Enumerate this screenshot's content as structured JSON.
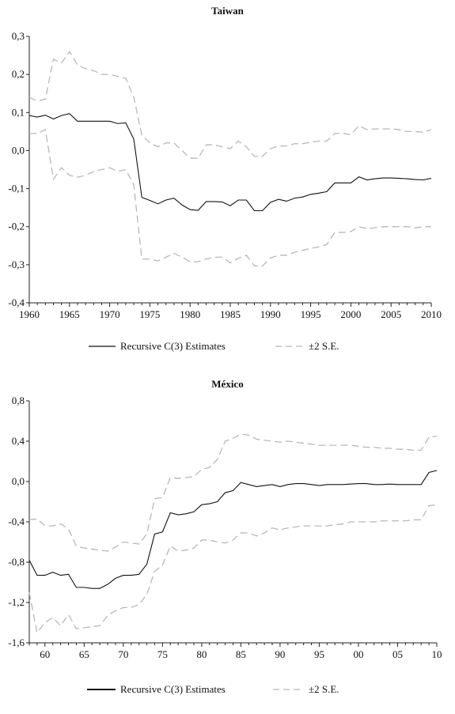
{
  "chart_data": [
    {
      "type": "line",
      "title": "Taiwan",
      "ylim": [
        -0.4,
        0.3
      ],
      "xlim": [
        1960,
        2010
      ],
      "yticks": [
        "0,3",
        "0,2",
        "0,1",
        "0,0",
        "-0,1",
        "-0,2",
        "-0,3",
        "-0,4"
      ],
      "ytick_values": [
        0.3,
        0.2,
        0.1,
        0.0,
        -0.1,
        -0.2,
        -0.3,
        -0.4
      ],
      "xticks": [
        "1960",
        "1965",
        "1970",
        "1975",
        "1980",
        "1985",
        "1990",
        "1995",
        "2000",
        "2005",
        "2010"
      ],
      "xtick_values": [
        1960,
        1965,
        1970,
        1975,
        1980,
        1985,
        1990,
        1995,
        2000,
        2005,
        2010
      ],
      "x": [
        1960,
        1961,
        1962,
        1963,
        1964,
        1965,
        1966,
        1967,
        1968,
        1969,
        1970,
        1971,
        1972,
        1973,
        1974,
        1975,
        1976,
        1977,
        1978,
        1979,
        1980,
        1981,
        1982,
        1983,
        1984,
        1985,
        1986,
        1987,
        1988,
        1989,
        1990,
        1991,
        1992,
        1993,
        1994,
        1995,
        1996,
        1997,
        1998,
        1999,
        2000,
        2001,
        2002,
        2003,
        2004,
        2005,
        2006,
        2007,
        2008,
        2009,
        2010
      ],
      "series": [
        {
          "name": "Recursive C(3) Estimates",
          "style": "solid",
          "values": [
            0.092,
            0.088,
            0.093,
            0.083,
            0.092,
            0.097,
            0.077,
            0.077,
            0.077,
            0.077,
            0.077,
            0.071,
            0.073,
            0.03,
            -0.123,
            -0.131,
            -0.14,
            -0.13,
            -0.125,
            -0.143,
            -0.155,
            -0.157,
            -0.134,
            -0.134,
            -0.135,
            -0.145,
            -0.13,
            -0.13,
            -0.158,
            -0.158,
            -0.136,
            -0.128,
            -0.133,
            -0.125,
            -0.122,
            -0.115,
            -0.112,
            -0.108,
            -0.085,
            -0.085,
            -0.085,
            -0.069,
            -0.077,
            -0.074,
            -0.072,
            -0.072,
            -0.073,
            -0.074,
            -0.076,
            -0.077,
            -0.073
          ]
        },
        {
          "name": "±2 S.E.",
          "style": "dashed",
          "values": [
            0.14,
            0.13,
            0.135,
            0.24,
            0.23,
            0.26,
            0.225,
            0.215,
            0.21,
            0.2,
            0.2,
            0.195,
            0.19,
            0.14,
            0.04,
            0.02,
            0.01,
            0.02,
            0.02,
            0.0,
            -0.02,
            -0.02,
            0.015,
            0.015,
            0.01,
            0.005,
            0.025,
            0.01,
            -0.015,
            -0.015,
            0.005,
            0.012,
            0.012,
            0.018,
            0.018,
            0.022,
            0.025,
            0.025,
            0.045,
            0.045,
            0.042,
            0.065,
            0.055,
            0.057,
            0.057,
            0.057,
            0.055,
            0.05,
            0.05,
            0.048,
            0.055
          ]
        },
        {
          "name": "±2 S.E.",
          "style": "dashed",
          "values": [
            0.045,
            0.045,
            0.055,
            -0.075,
            -0.045,
            -0.065,
            -0.07,
            -0.065,
            -0.055,
            -0.05,
            -0.045,
            -0.055,
            -0.05,
            -0.09,
            -0.285,
            -0.285,
            -0.29,
            -0.28,
            -0.27,
            -0.28,
            -0.292,
            -0.292,
            -0.285,
            -0.28,
            -0.28,
            -0.295,
            -0.283,
            -0.275,
            -0.303,
            -0.303,
            -0.282,
            -0.275,
            -0.275,
            -0.267,
            -0.262,
            -0.257,
            -0.253,
            -0.247,
            -0.215,
            -0.215,
            -0.213,
            -0.2,
            -0.205,
            -0.203,
            -0.2,
            -0.2,
            -0.2,
            -0.2,
            -0.203,
            -0.2,
            -0.2
          ]
        }
      ],
      "legend": [
        "Recursive C(3) Estimates",
        "±2 S.E."
      ],
      "legend_position": "bottom"
    },
    {
      "type": "line",
      "title": "México",
      "ylim": [
        -1.6,
        0.8
      ],
      "xlim": [
        1958,
        2010
      ],
      "yticks": [
        "0,8",
        "0,4",
        "0,0",
        "-0,4",
        "-0,8",
        "-1,2",
        "-1,6"
      ],
      "ytick_values": [
        0.8,
        0.4,
        0.0,
        -0.4,
        -0.8,
        -1.2,
        -1.6
      ],
      "xticks": [
        "60",
        "65",
        "70",
        "75",
        "80",
        "85",
        "90",
        "95",
        "00",
        "05",
        "10"
      ],
      "xtick_values": [
        1960,
        1965,
        1970,
        1975,
        1980,
        1985,
        1990,
        1995,
        2000,
        2005,
        2010
      ],
      "x": [
        1958,
        1959,
        1960,
        1961,
        1962,
        1963,
        1964,
        1965,
        1966,
        1967,
        1968,
        1969,
        1970,
        1971,
        1972,
        1973,
        1974,
        1975,
        1976,
        1977,
        1978,
        1979,
        1980,
        1981,
        1982,
        1983,
        1984,
        1985,
        1986,
        1987,
        1988,
        1989,
        1990,
        1991,
        1992,
        1993,
        1994,
        1995,
        1996,
        1997,
        1998,
        1999,
        2000,
        2001,
        2002,
        2003,
        2004,
        2005,
        2006,
        2007,
        2008,
        2009,
        2010
      ],
      "series": [
        {
          "name": "Recursive C(3) Estimates",
          "style": "solid",
          "values": [
            -0.78,
            -0.93,
            -0.93,
            -0.9,
            -0.93,
            -0.92,
            -1.05,
            -1.05,
            -1.06,
            -1.06,
            -1.02,
            -0.96,
            -0.93,
            -0.93,
            -0.92,
            -0.82,
            -0.52,
            -0.5,
            -0.31,
            -0.33,
            -0.32,
            -0.3,
            -0.23,
            -0.22,
            -0.2,
            -0.11,
            -0.09,
            -0.01,
            -0.03,
            -0.05,
            -0.04,
            -0.03,
            -0.05,
            -0.03,
            -0.02,
            -0.02,
            -0.03,
            -0.04,
            -0.03,
            -0.03,
            -0.03,
            -0.025,
            -0.02,
            -0.02,
            -0.03,
            -0.03,
            -0.025,
            -0.03,
            -0.03,
            -0.03,
            -0.03,
            0.09,
            0.11
          ]
        },
        {
          "name": "±2 S.E.",
          "style": "dashed",
          "values": [
            -1.1,
            -1.5,
            -1.4,
            -1.35,
            -1.43,
            -1.32,
            -1.46,
            -1.45,
            -1.44,
            -1.43,
            -1.33,
            -1.28,
            -1.25,
            -1.25,
            -1.22,
            -1.12,
            -0.89,
            -0.83,
            -0.64,
            -0.69,
            -0.68,
            -0.66,
            -0.58,
            -0.58,
            -0.6,
            -0.61,
            -0.58,
            -0.51,
            -0.51,
            -0.54,
            -0.51,
            -0.46,
            -0.48,
            -0.46,
            -0.45,
            -0.44,
            -0.44,
            -0.44,
            -0.44,
            -0.43,
            -0.42,
            -0.4,
            -0.4,
            -0.4,
            -0.4,
            -0.39,
            -0.39,
            -0.39,
            -0.39,
            -0.38,
            -0.38,
            -0.24,
            -0.23
          ]
        },
        {
          "name": "±2 S.E.",
          "style": "dashed",
          "values": [
            -0.38,
            -0.37,
            -0.44,
            -0.44,
            -0.42,
            -0.47,
            -0.64,
            -0.66,
            -0.67,
            -0.68,
            -0.69,
            -0.65,
            -0.6,
            -0.61,
            -0.62,
            -0.52,
            -0.17,
            -0.16,
            0.04,
            0.03,
            0.04,
            0.05,
            0.12,
            0.14,
            0.22,
            0.4,
            0.43,
            0.47,
            0.46,
            0.42,
            0.41,
            0.4,
            0.39,
            0.4,
            0.39,
            0.38,
            0.37,
            0.36,
            0.36,
            0.36,
            0.36,
            0.36,
            0.35,
            0.34,
            0.34,
            0.33,
            0.33,
            0.32,
            0.32,
            0.31,
            0.31,
            0.44,
            0.45
          ]
        }
      ],
      "legend": [
        "Recursive C(3) Estimates",
        "±2 S.E."
      ],
      "legend_position": "bottom"
    }
  ]
}
